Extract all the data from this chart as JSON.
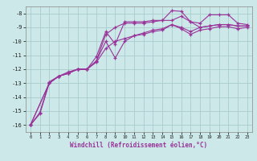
{
  "title": "",
  "xlabel": "Windchill (Refroidissement éolien,°C)",
  "bg_color": "#cce8e8",
  "grid_color": "#aacccc",
  "line_color": "#993399",
  "xlim": [
    -0.5,
    23.5
  ],
  "ylim": [
    -16.5,
    -7.5
  ],
  "xticks": [
    0,
    1,
    2,
    3,
    4,
    5,
    6,
    7,
    8,
    9,
    10,
    11,
    12,
    13,
    14,
    15,
    16,
    17,
    18,
    19,
    20,
    21,
    22,
    23
  ],
  "yticks": [
    -16,
    -15,
    -14,
    -13,
    -12,
    -11,
    -10,
    -9,
    -8
  ],
  "series1_x": [
    0,
    1,
    2,
    3,
    4,
    5,
    6,
    7,
    8,
    9,
    10,
    11,
    12,
    13,
    14,
    15,
    16,
    17,
    18,
    19,
    20,
    21,
    22,
    23
  ],
  "series1_y": [
    -16.0,
    -15.2,
    -13.0,
    -12.5,
    -12.3,
    -12.0,
    -12.0,
    -11.1,
    -9.3,
    -10.2,
    -8.6,
    -8.6,
    -8.6,
    -8.5,
    -8.5,
    -7.8,
    -7.85,
    -8.6,
    -8.7,
    -8.1,
    -8.1,
    -8.1,
    -8.7,
    -8.8
  ],
  "series2_x": [
    0,
    1,
    2,
    3,
    4,
    5,
    6,
    7,
    8,
    9,
    10,
    11,
    12,
    13,
    14,
    15,
    16,
    17,
    18,
    19,
    20,
    21,
    22,
    23
  ],
  "series2_y": [
    -16.0,
    -15.1,
    -12.9,
    -12.5,
    -12.2,
    -12.0,
    -12.0,
    -11.4,
    -10.0,
    -11.2,
    -10.0,
    -9.6,
    -9.5,
    -9.3,
    -9.2,
    -8.8,
    -9.1,
    -9.5,
    -9.2,
    -9.1,
    -8.95,
    -8.95,
    -9.1,
    -9.0
  ],
  "series3_x": [
    0,
    2,
    3,
    4,
    5,
    6,
    7,
    8,
    9,
    10,
    11,
    12,
    13,
    14,
    15,
    16,
    17,
    18,
    19,
    20,
    21,
    22,
    23
  ],
  "series3_y": [
    -16.0,
    -13.0,
    -12.5,
    -12.3,
    -12.0,
    -12.0,
    -11.5,
    -10.5,
    -10.0,
    -9.8,
    -9.6,
    -9.4,
    -9.2,
    -9.1,
    -8.8,
    -9.0,
    -9.3,
    -9.0,
    -8.9,
    -8.8,
    -8.8,
    -8.9,
    -8.9
  ],
  "series4_x": [
    0,
    2,
    3,
    4,
    5,
    6,
    7,
    8,
    9,
    10,
    11,
    12,
    13,
    14,
    15,
    16,
    17,
    18,
    19,
    20,
    21,
    22,
    23
  ],
  "series4_y": [
    -16.0,
    -13.0,
    -12.5,
    -12.3,
    -12.0,
    -12.0,
    -11.4,
    -9.5,
    -9.0,
    -8.7,
    -8.7,
    -8.7,
    -8.6,
    -8.5,
    -8.5,
    -8.2,
    -8.6,
    -9.0,
    -8.9,
    -8.8,
    -8.8,
    -8.9,
    -8.9
  ]
}
